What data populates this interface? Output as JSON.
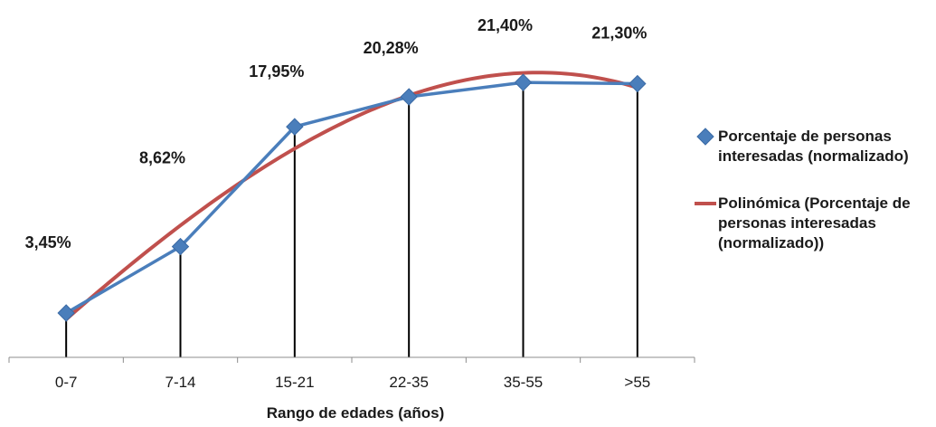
{
  "chart_data": {
    "type": "line",
    "title": "",
    "xlabel": "Rango de edades (años)",
    "ylabel": "",
    "categories": [
      "0-7",
      "7-14",
      "15-21",
      "22-35",
      "35-55",
      ">55"
    ],
    "ylim": [
      0,
      25
    ],
    "grid": false,
    "drop_lines": true,
    "legend_placement": "right",
    "series": [
      {
        "name": "Porcentaje de personas interesadas (normalizado)",
        "values": [
          3.45,
          8.62,
          17.95,
          20.28,
          21.4,
          21.3
        ],
        "data_labels": [
          "3,45%",
          "8,62%",
          "17,95%",
          "20,28%",
          "21,40%",
          "21,30%"
        ],
        "color": "#4a7ebb",
        "marker": "diamond"
      },
      {
        "name": "Polinómica (Porcentaje de personas interesadas (normalizado))",
        "type": "polynomial-trendline",
        "color": "#c0504d"
      }
    ]
  },
  "legend": {
    "items": [
      {
        "label": "Porcentaje de personas interesadas (normalizado)"
      },
      {
        "label": "Polinómica (Porcentaje de personas interesadas (normalizado))"
      }
    ]
  }
}
